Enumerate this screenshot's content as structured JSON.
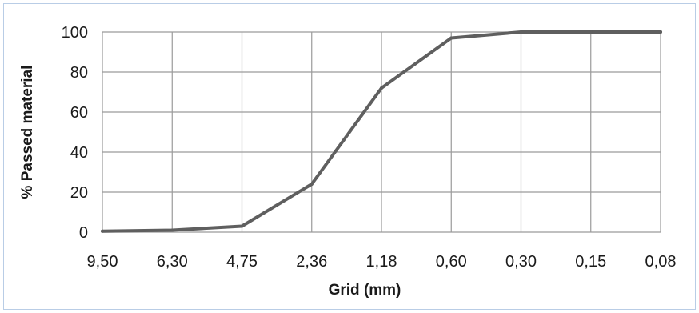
{
  "chart_data": {
    "type": "line",
    "title": "",
    "xlabel": "Grid (mm)",
    "ylabel": "% Passed material",
    "categories": [
      "9,50",
      "6,30",
      "4,75",
      "2,36",
      "1,18",
      "0,60",
      "0,30",
      "0,15",
      "0,08"
    ],
    "series": [
      {
        "values": [
          0.5,
          1,
          3,
          24,
          72,
          97,
          100,
          100,
          100
        ]
      }
    ],
    "ylim": [
      0,
      100
    ],
    "yticks": [
      0,
      20,
      40,
      60,
      80,
      100
    ],
    "grid": true,
    "legend": "none",
    "colors": {
      "line": "#5f5f5f",
      "grid": "#9a9a9a",
      "frame": "#b9cde6"
    }
  }
}
